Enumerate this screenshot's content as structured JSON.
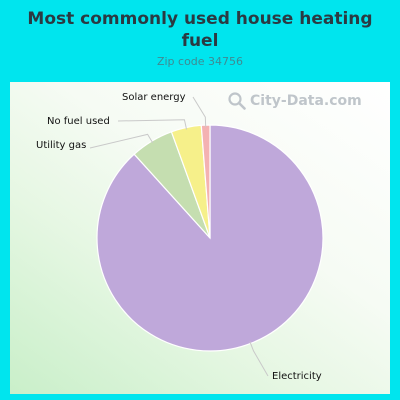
{
  "title": "Most commonly used house heating fuel",
  "subtitle": "Zip code 34756",
  "watermark": "City-Data.com",
  "chart_data": {
    "type": "pie",
    "slices": [
      {
        "label": "Electricity",
        "value": 86.0,
        "color": "#bfa8da"
      },
      {
        "label": "Utility gas",
        "value": 6.0,
        "color": "#c5deb0"
      },
      {
        "label": "No fuel used",
        "value": 4.2,
        "color": "#f6f08a"
      },
      {
        "label": "Solar energy",
        "value": 1.2,
        "color": "#f4b2b2"
      }
    ]
  }
}
